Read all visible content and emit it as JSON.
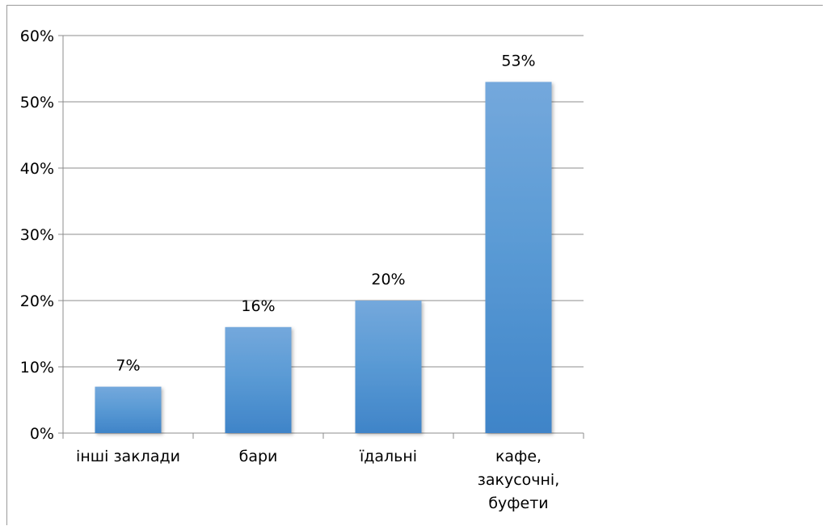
{
  "chart_data": {
    "type": "bar",
    "categories": [
      "інші заклади",
      "бари",
      "їдальні",
      "кафе, закусочні, буфети"
    ],
    "category_lines": [
      [
        "інші заклади"
      ],
      [
        "бари"
      ],
      [
        "їдальні"
      ],
      [
        "кафе,",
        "закусочні,",
        "буфети"
      ]
    ],
    "values": [
      7,
      16,
      20,
      53
    ],
    "data_labels": [
      "7%",
      "16%",
      "20%",
      "53%"
    ],
    "ylim": [
      0,
      60
    ],
    "yticks": [
      0,
      10,
      20,
      30,
      40,
      50,
      60
    ],
    "ytick_labels": [
      "0%",
      "10%",
      "20%",
      "30%",
      "40%",
      "50%",
      "60%"
    ],
    "grid": true,
    "legend": "none",
    "bar_color_top": "#74a8dc",
    "bar_color_mid": "#5b9bd5",
    "bar_color_bottom": "#3f84c8"
  }
}
